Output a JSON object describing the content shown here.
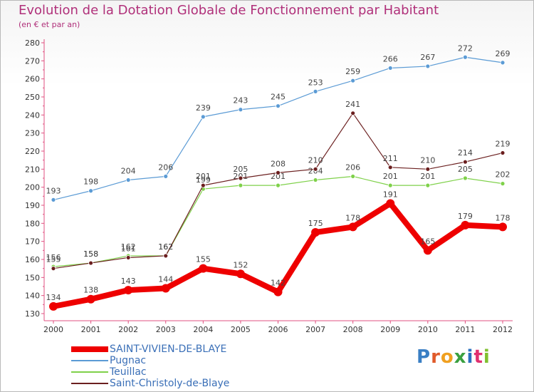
{
  "header": {
    "title": "Evolution de la Dotation Globale de Fonctionnement par Habitant",
    "subtitle": "(en € et par an)"
  },
  "logo": {
    "text": "Proxiti",
    "colors": [
      "#3a7fc4",
      "#e05a2a",
      "#f0a020",
      "#3aa040",
      "#2a70c0",
      "#e03070",
      "#80c030"
    ]
  },
  "chart_data": {
    "type": "line",
    "title": "Evolution de la Dotation Globale de Fonctionnement par Habitant",
    "subtitle": "(en € et par an)",
    "xlabel": "",
    "ylabel": "",
    "ylim": [
      130,
      280
    ],
    "yticks": [
      130,
      140,
      150,
      160,
      170,
      180,
      190,
      200,
      210,
      220,
      230,
      240,
      250,
      260,
      270,
      280
    ],
    "categories": [
      "2000",
      "2001",
      "2002",
      "2003",
      "2004",
      "2005",
      "2006",
      "2007",
      "2008",
      "2009",
      "2010",
      "2011",
      "2012"
    ],
    "series": [
      {
        "name": "Pugnac",
        "color": "#5b9bd5",
        "values": [
          193,
          198,
          204,
          206,
          239,
          243,
          245,
          253,
          259,
          266,
          267,
          272,
          269
        ]
      },
      {
        "name": "Teuillac",
        "color": "#7fd14a",
        "values": [
          156,
          158,
          162,
          162,
          199,
          201,
          201,
          204,
          206,
          201,
          201,
          205,
          202
        ]
      },
      {
        "name": "Saint-Christoly-de-Blaye",
        "color": "#6b1f1f",
        "values": [
          155,
          158,
          161,
          162,
          201,
          205,
          208,
          210,
          241,
          211,
          210,
          214,
          219
        ]
      },
      {
        "name": "SAINT-VIVIEN-DE-BLAYE",
        "color": "#ee0000",
        "values": [
          134,
          138,
          143,
          144,
          155,
          152,
          142,
          175,
          178,
          191,
          165,
          179,
          178
        ]
      }
    ],
    "legend": [
      "SAINT-VIVIEN-DE-BLAYE",
      "Pugnac",
      "Teuillac",
      "Saint-Christoly-de-Blaye"
    ],
    "legend_position": "bottom-left",
    "grid": false
  }
}
